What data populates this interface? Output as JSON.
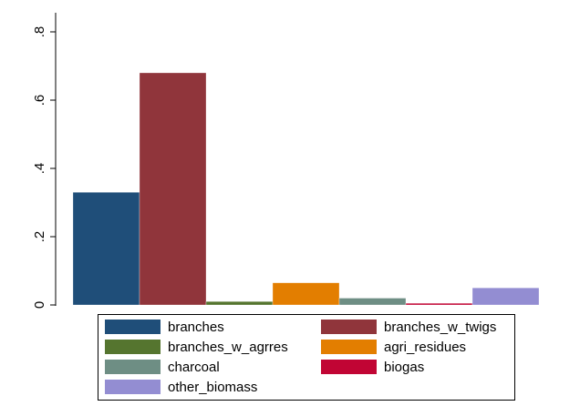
{
  "chart_data": {
    "type": "bar",
    "title": "",
    "xlabel": "",
    "ylabel": "",
    "ylim": [
      0,
      0.85
    ],
    "yticks": [
      0,
      0.2,
      0.4,
      0.6,
      0.8
    ],
    "ytick_labels": [
      "0",
      ".2",
      ".4",
      ".6",
      ".8"
    ],
    "grid": false,
    "legend_position": "bottom",
    "series": [
      {
        "name": "branches",
        "value": 0.33,
        "color": "#1f4e79"
      },
      {
        "name": "branches_w_twigs",
        "value": 0.68,
        "color": "#90353b"
      },
      {
        "name": "branches_w_agrres",
        "value": 0.01,
        "color": "#55752f"
      },
      {
        "name": "agri_residues",
        "value": 0.065,
        "color": "#e37e00"
      },
      {
        "name": "charcoal",
        "value": 0.02,
        "color": "#6e8e84"
      },
      {
        "name": "biogas",
        "value": 0.005,
        "color": "#c10534"
      },
      {
        "name": "other_biomass",
        "value": 0.05,
        "color": "#938dd2"
      }
    ]
  }
}
